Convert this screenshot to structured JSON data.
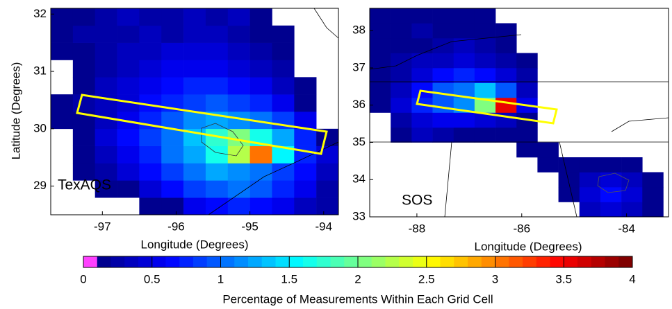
{
  "chart_data": [
    {
      "type": "heatmap",
      "annotation": "TexAQS",
      "xlabel": "Longitude (Degrees)",
      "ylabel": "Latitude (Degrees)",
      "xlim": [
        -97.7,
        -93.8
      ],
      "ylim": [
        28.5,
        32.1
      ],
      "xticks": [
        -97,
        -96,
        -95,
        -94
      ],
      "yticks": [
        29,
        30,
        31,
        32
      ],
      "x_bins": [
        -97.7,
        -97.4,
        -97.1,
        -96.8,
        -96.5,
        -96.2,
        -95.9,
        -95.6,
        -95.3,
        -95.0,
        -94.7,
        -94.4,
        -94.1,
        -93.8
      ],
      "y_bins": [
        28.5,
        28.8,
        29.1,
        29.4,
        29.7,
        30.0,
        30.3,
        30.6,
        30.9,
        31.2,
        31.5,
        31.8,
        32.1
      ],
      "values": [
        [
          null,
          null,
          null,
          null,
          0.1,
          0.1,
          0.5,
          0.6,
          0.7,
          0.6,
          0.5,
          0.3,
          0.2
        ],
        [
          null,
          null,
          0.1,
          0.1,
          0.4,
          0.6,
          0.8,
          0.9,
          1.0,
          0.9,
          0.7,
          0.5,
          0.2
        ],
        [
          null,
          0.1,
          0.2,
          0.4,
          0.6,
          0.8,
          1.0,
          1.2,
          1.1,
          1.0,
          0.8,
          0.6,
          0.3
        ],
        [
          null,
          0.1,
          0.3,
          0.5,
          0.7,
          1.0,
          1.2,
          1.6,
          2.2,
          3.0,
          1.5,
          0.7,
          0.4
        ],
        [
          null,
          0.1,
          0.4,
          0.6,
          0.8,
          1.0,
          1.3,
          1.7,
          2.0,
          1.6,
          1.2,
          0.7,
          0.1
        ],
        [
          0.1,
          0.1,
          0.3,
          0.5,
          0.7,
          0.9,
          1.1,
          1.2,
          1.1,
          1.0,
          0.8,
          0.5,
          null
        ],
        [
          0.1,
          0.2,
          0.3,
          0.4,
          0.6,
          0.7,
          0.8,
          0.9,
          0.8,
          0.7,
          0.5,
          0.1,
          null
        ],
        [
          null,
          0.1,
          0.3,
          0.4,
          0.5,
          0.6,
          0.7,
          0.7,
          0.6,
          0.5,
          0.3,
          0.1,
          null
        ],
        [
          null,
          0.1,
          0.2,
          0.3,
          0.4,
          0.5,
          0.5,
          0.5,
          0.4,
          0.3,
          0.2,
          null,
          null
        ],
        [
          0.1,
          0.1,
          0.2,
          0.3,
          0.3,
          0.4,
          0.4,
          0.4,
          0.3,
          0.2,
          0.1,
          null,
          null
        ],
        [
          0.1,
          0.2,
          0.2,
          0.2,
          0.3,
          0.2,
          0.3,
          0.3,
          0.2,
          0.1,
          0.1,
          null,
          null
        ],
        [
          0.1,
          0.1,
          0.2,
          0.3,
          0.2,
          0.2,
          0.3,
          0.2,
          0.3,
          0.1,
          null,
          null,
          null
        ]
      ]
    },
    {
      "type": "heatmap",
      "annotation": "SOS",
      "xlabel": "Longitude (Degrees)",
      "xlim": [
        -88.9,
        -83.2
      ],
      "ylim": [
        33,
        38.6
      ],
      "xticks": [
        -88,
        -86,
        -84
      ],
      "yticks": [
        33,
        34,
        35,
        36,
        37,
        38
      ],
      "x_bins": [
        -88.9,
        -88.5,
        -88.1,
        -87.7,
        -87.3,
        -86.9,
        -86.5,
        -86.1,
        -85.7,
        -85.3,
        -84.9,
        -84.5,
        -84.1,
        -83.7,
        -83.3
      ],
      "y_bins": [
        33.0,
        33.4,
        33.8,
        34.2,
        34.6,
        35.0,
        35.4,
        35.8,
        36.2,
        36.6,
        37.0,
        37.4,
        37.8,
        38.2,
        38.6
      ],
      "values": [
        [
          null,
          null,
          null,
          null,
          null,
          null,
          null,
          null,
          null,
          null,
          0.3,
          0.4,
          0.3,
          0.1
        ],
        [
          null,
          null,
          null,
          null,
          null,
          null,
          null,
          null,
          null,
          0.1,
          0.4,
          0.6,
          0.4,
          0.1
        ],
        [
          null,
          null,
          null,
          null,
          null,
          null,
          null,
          null,
          null,
          0.1,
          0.3,
          0.4,
          0.3,
          0.1
        ],
        [
          null,
          null,
          null,
          null,
          null,
          null,
          null,
          null,
          0.1,
          0.1,
          0.1,
          0.1,
          0.1,
          null
        ],
        [
          null,
          null,
          null,
          null,
          null,
          null,
          null,
          0.1,
          0.1,
          null,
          null,
          null,
          null,
          null
        ],
        [
          null,
          0.1,
          0.3,
          0.2,
          0.1,
          0.1,
          0.1,
          0.1,
          null,
          null,
          null,
          null,
          null,
          null
        ],
        [
          null,
          0.2,
          0.4,
          0.5,
          0.5,
          0.4,
          0.3,
          0.1,
          null,
          null,
          null,
          null,
          null,
          null
        ],
        [
          0.1,
          0.4,
          0.7,
          0.9,
          1.1,
          2.0,
          3.5,
          0.5,
          null,
          null,
          null,
          null,
          null,
          null
        ],
        [
          0.1,
          0.3,
          0.6,
          0.9,
          1.0,
          1.3,
          0.9,
          0.3,
          null,
          null,
          null,
          null,
          null,
          null
        ],
        [
          0.1,
          0.2,
          0.4,
          0.6,
          0.7,
          0.6,
          0.4,
          0.2,
          null,
          null,
          null,
          null,
          null,
          null
        ],
        [
          0.1,
          0.2,
          0.3,
          0.3,
          0.4,
          0.3,
          0.2,
          0.1,
          null,
          null,
          null,
          null,
          null,
          null
        ],
        [
          0.1,
          0.1,
          0.1,
          0.2,
          0.3,
          0.2,
          0.1,
          null,
          null,
          null,
          null,
          null,
          null,
          null
        ],
        [
          0.1,
          0.1,
          0.2,
          0.1,
          0.1,
          0.1,
          0.1,
          null,
          null,
          null,
          null,
          null,
          null,
          null
        ],
        [
          0.1,
          0.1,
          0.1,
          0.1,
          0.1,
          0.1,
          null,
          null,
          null,
          null,
          null,
          null,
          null,
          null
        ]
      ]
    }
  ],
  "colorbar": {
    "label": "Percentage of Measurements Within Each Grid Cell",
    "clim": [
      0,
      4
    ],
    "ticks": [
      0,
      0.5,
      1,
      1.5,
      2,
      2.5,
      3,
      3.5,
      4
    ],
    "colormap": [
      "#ff40ff",
      "#00008f",
      "#0000ff",
      "#0080ff",
      "#00ffff",
      "#80ff80",
      "#ffff00",
      "#ff8000",
      "#ff0000",
      "#800000"
    ]
  }
}
